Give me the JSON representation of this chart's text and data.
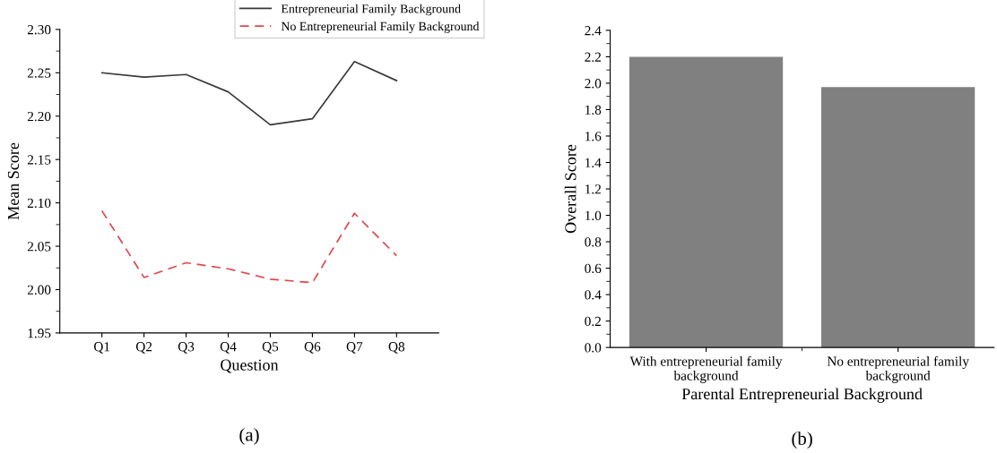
{
  "chart_data": [
    {
      "type": "line",
      "title": "(a)",
      "xlabel": "Question",
      "ylabel": "Mean Score",
      "categories": [
        "Q1",
        "Q2",
        "Q3",
        "Q4",
        "Q5",
        "Q6",
        "Q7",
        "Q8"
      ],
      "series": [
        {
          "name": "Entrepreneurial Family Background",
          "color": "#3a3a3a",
          "line_style": "solid",
          "values": [
            2.25,
            2.245,
            2.248,
            2.228,
            2.19,
            2.197,
            2.263,
            2.241
          ]
        },
        {
          "name": "No Entrepreneurial Family Background",
          "color": "#e0474c",
          "line_style": "dashed",
          "values": [
            2.091,
            2.014,
            2.031,
            2.024,
            2.012,
            2.008,
            2.088,
            2.039
          ]
        }
      ],
      "ylim": [
        1.95,
        2.3
      ],
      "yticks": [
        {
          "value": 1.95,
          "label": "1.95"
        },
        {
          "value": 2.0,
          "label": "2.00"
        },
        {
          "value": 2.05,
          "label": "2.05"
        },
        {
          "value": 2.1,
          "label": "2.10"
        },
        {
          "value": 2.15,
          "label": "2.15"
        },
        {
          "value": 2.2,
          "label": "2.20"
        },
        {
          "value": 2.25,
          "label": "2.25"
        },
        {
          "value": 2.3,
          "label": "2.30"
        }
      ],
      "grid": false,
      "legend": "top right",
      "marker": "none"
    },
    {
      "type": "bar",
      "title": "(b)",
      "xlabel": "Parental Entrepreneurial Background",
      "ylabel": "Overall Score",
      "categories": [
        "With entrepreneurial family\nbackground",
        "No entrepreneurial family\nbackground"
      ],
      "values": [
        2.2,
        1.97
      ],
      "color": "#808080",
      "ylim": [
        0,
        2.4
      ],
      "yticks": [
        {
          "value": 0,
          "label": "0.0"
        },
        {
          "value": 0.2,
          "label": "0.2"
        },
        {
          "value": 0.4,
          "label": "0.4"
        },
        {
          "value": 0.6,
          "label": "0.6"
        },
        {
          "value": 0.8,
          "label": "0.8"
        },
        {
          "value": 1.0,
          "label": "1.0"
        },
        {
          "value": 1.2,
          "label": "1.2"
        },
        {
          "value": 1.4,
          "label": "1.4"
        },
        {
          "value": 1.6,
          "label": "1.6"
        },
        {
          "value": 1.8,
          "label": "1.8"
        },
        {
          "value": 2.0,
          "label": "2.0"
        },
        {
          "value": 2.2,
          "label": "2.2"
        },
        {
          "value": 2.4,
          "label": "2.4"
        }
      ],
      "grid": false,
      "legend": false
    }
  ]
}
